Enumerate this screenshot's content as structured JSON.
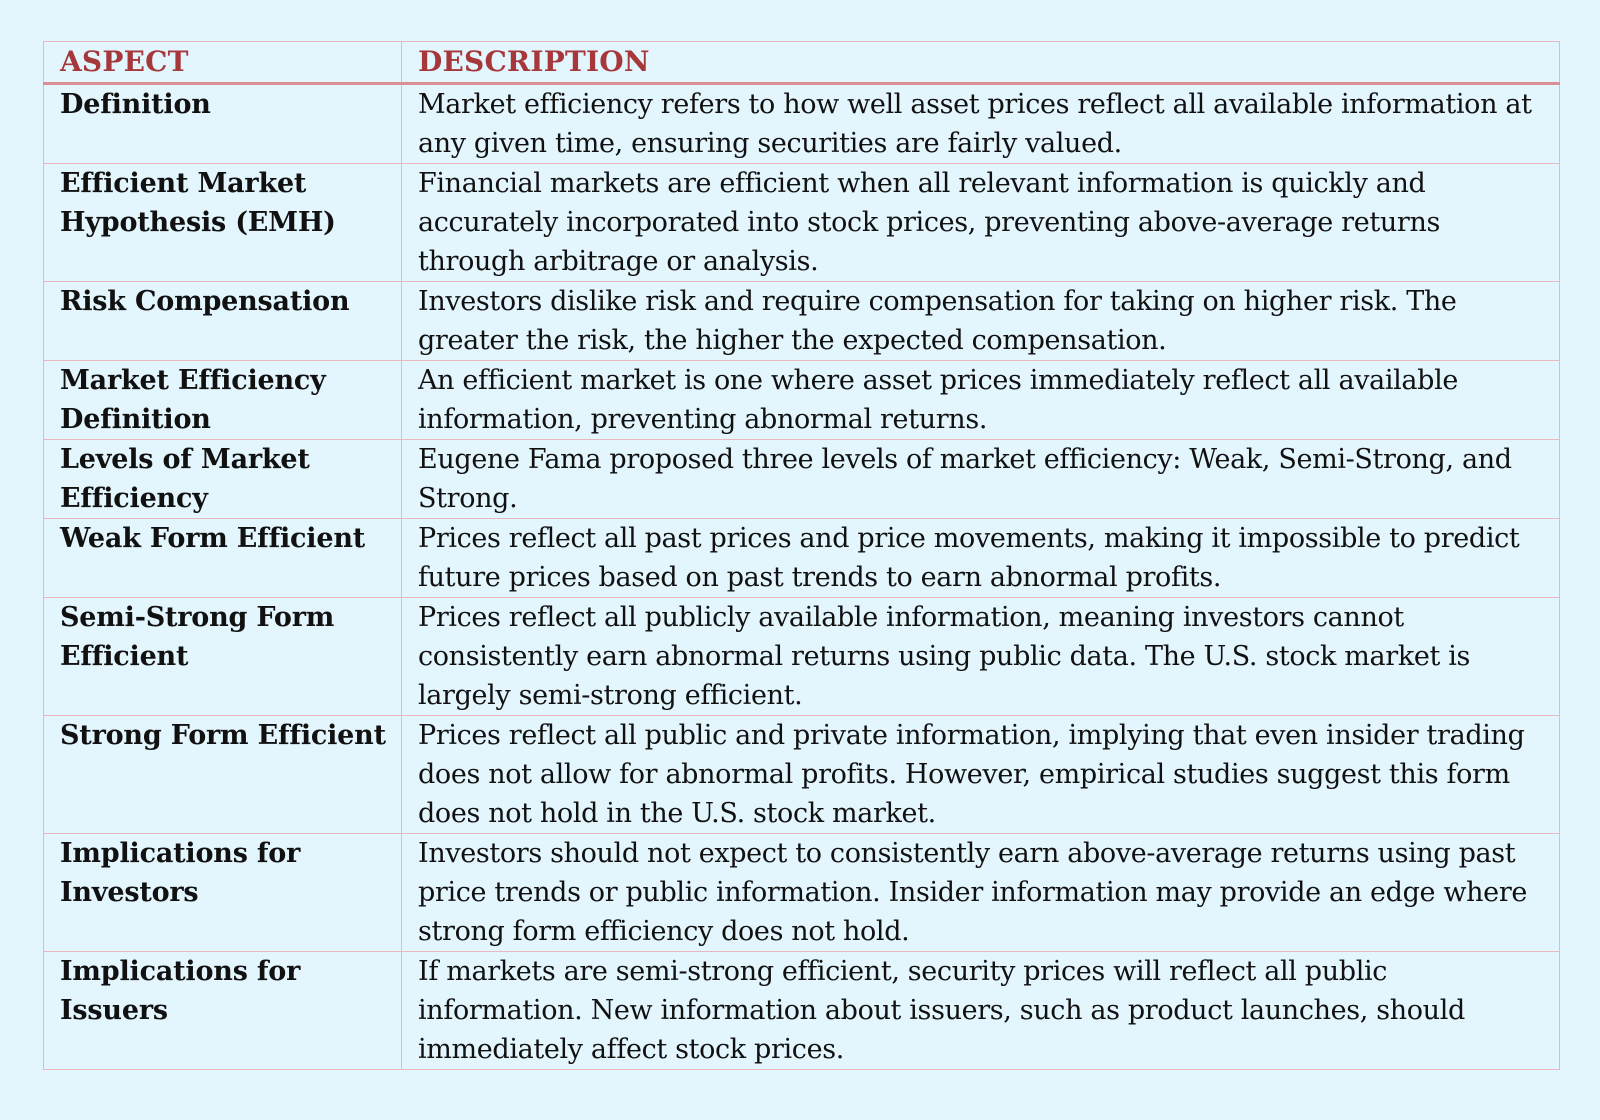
{
  "table": {
    "headers": {
      "aspect": "ASPECT",
      "description": "DESCRIPTION"
    },
    "rows": [
      {
        "aspect": "Definition",
        "description": "Market efficiency refers to how well asset prices reflect all available information at any given time, ensuring securities are fairly valued."
      },
      {
        "aspect": "Efficient Market Hypothesis (EMH)",
        "description": "Financial markets are efficient when all relevant information is quickly and accurately incorporated into stock prices, preventing above-average returns through arbitrage or analysis."
      },
      {
        "aspect": "Risk Compensation",
        "description": "Investors dislike risk and require compensation for taking on higher risk. The greater the risk, the higher the expected compensation."
      },
      {
        "aspect": "Market Efficiency Definition",
        "description": "An efficient market is one where asset prices immediately reflect all available information, preventing abnormal returns."
      },
      {
        "aspect": "Levels of Market Efficiency",
        "description": "Eugene Fama proposed three levels of market efficiency: Weak, Semi-Strong, and Strong."
      },
      {
        "aspect": "Weak Form Efficient",
        "description": "Prices reflect all past prices and price movements, making it impossible to predict future prices based on past trends to earn abnormal profits."
      },
      {
        "aspect": "Semi-Strong Form Efficient",
        "description": "Prices reflect all publicly available information, meaning investors cannot consistently earn abnormal returns using public data. The U.S. stock market is largely semi-strong efficient."
      },
      {
        "aspect": "Strong Form Efficient",
        "description": "Prices reflect all public and private information, implying that even insider trading does not allow for abnormal profits. However, empirical studies suggest this form does not hold in the U.S. stock market."
      },
      {
        "aspect": "Implications for Investors",
        "description": "Investors should not expect to consistently earn above-average returns using past price trends or public information. Insider information may provide an edge where strong form efficiency does not hold."
      },
      {
        "aspect": "Implications for Issuers",
        "description": "If markets are semi-strong efficient, security prices will reflect all public information. New information about issuers, such as product launches, should immediately affect stock prices."
      }
    ]
  }
}
